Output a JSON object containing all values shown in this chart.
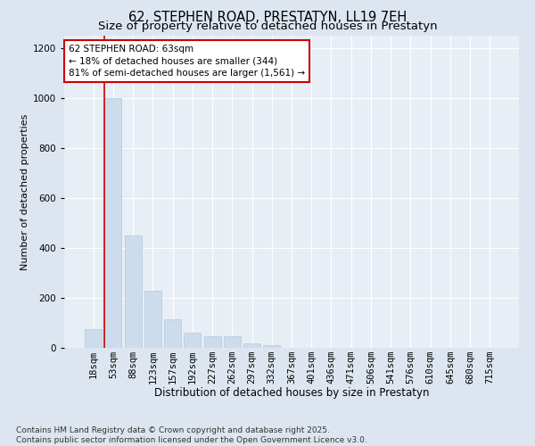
{
  "title": "62, STEPHEN ROAD, PRESTATYN, LL19 7EH",
  "subtitle": "Size of property relative to detached houses in Prestatyn",
  "xlabel": "Distribution of detached houses by size in Prestatyn",
  "ylabel": "Number of detached properties",
  "categories": [
    "18sqm",
    "53sqm",
    "88sqm",
    "123sqm",
    "157sqm",
    "192sqm",
    "227sqm",
    "262sqm",
    "297sqm",
    "332sqm",
    "367sqm",
    "401sqm",
    "436sqm",
    "471sqm",
    "506sqm",
    "541sqm",
    "576sqm",
    "610sqm",
    "645sqm",
    "680sqm",
    "715sqm"
  ],
  "values": [
    75,
    1000,
    450,
    230,
    115,
    60,
    48,
    48,
    18,
    12,
    0,
    0,
    0,
    0,
    0,
    0,
    0,
    0,
    0,
    0,
    0
  ],
  "bar_color": "#cddcec",
  "bar_edge_color": "#afc8e0",
  "vline_color": "#cc0000",
  "annotation_text": "62 STEPHEN ROAD: 63sqm\n← 18% of detached houses are smaller (344)\n81% of semi-detached houses are larger (1,561) →",
  "annotation_box_color": "white",
  "annotation_box_edge": "#cc0000",
  "ylim": [
    0,
    1250
  ],
  "yticks": [
    0,
    200,
    400,
    600,
    800,
    1000,
    1200
  ],
  "bg_color": "#dde6f0",
  "plot_bg_color": "#e8eef5",
  "footer": "Contains HM Land Registry data © Crown copyright and database right 2025.\nContains public sector information licensed under the Open Government Licence v3.0.",
  "title_fontsize": 10.5,
  "subtitle_fontsize": 9.5,
  "xlabel_fontsize": 8.5,
  "ylabel_fontsize": 8,
  "tick_fontsize": 7.5,
  "footer_fontsize": 6.5,
  "annot_fontsize": 7.5,
  "vline_xindex": 1
}
